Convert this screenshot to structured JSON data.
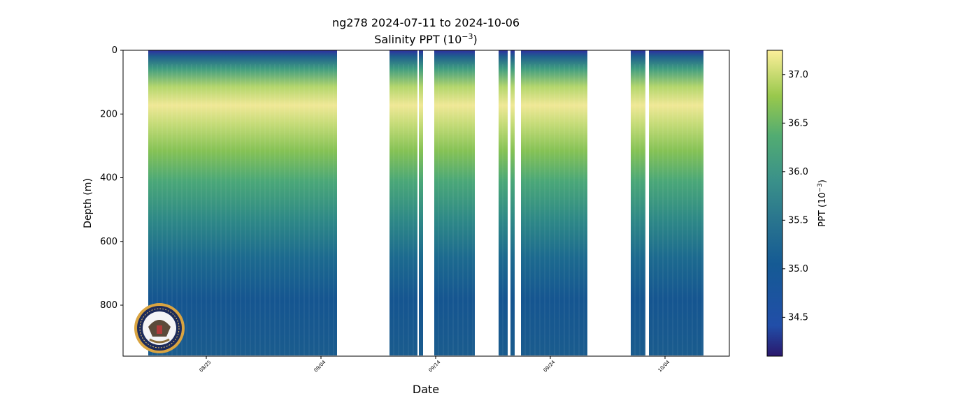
{
  "chart_data": {
    "type": "heatmap",
    "title": "ng278 2024-07-11 to 2024-10-06",
    "subtitle_prefix": "Salinity PPT (10",
    "subtitle_exp": "−3",
    "subtitle_suffix": ")",
    "xlabel": "Date",
    "ylabel": "Depth (m)",
    "x_ticks": [
      "08/25",
      "09/04",
      "09/14",
      "09/24",
      "10/04"
    ],
    "y_ticks": [
      "0",
      "200",
      "400",
      "600",
      "800"
    ],
    "y_tick_values": [
      0,
      200,
      400,
      600,
      800
    ],
    "ylim": [
      0,
      960
    ],
    "y_inverted": true,
    "colorbar": {
      "label_prefix": "PPT (10",
      "label_exp": "−3",
      "label_suffix": ")",
      "ticks": [
        "34.5",
        "35.0",
        "35.5",
        "36.0",
        "36.5",
        "37.0"
      ],
      "tick_values": [
        34.5,
        35.0,
        35.5,
        36.0,
        36.5,
        37.0
      ],
      "range": [
        34.1,
        37.25
      ],
      "colormap": "haline"
    },
    "segments": [
      {
        "start": "08/18",
        "end": "09/04"
      },
      {
        "start": "09/09",
        "end": "09/11"
      },
      {
        "start": "09/11",
        "end": "09/11"
      },
      {
        "start": "09/13",
        "end": "09/19"
      },
      {
        "start": "09/19",
        "end": "09/20"
      },
      {
        "start": "09/21",
        "end": "09/21"
      },
      {
        "start": "09/22",
        "end": "09/25"
      },
      {
        "start": "10/01",
        "end": "10/02"
      },
      {
        "start": "10/02",
        "end": "10/05"
      }
    ],
    "profile_depths_m": [
      0,
      10,
      30,
      60,
      90,
      120,
      150,
      170,
      200,
      250,
      300,
      350,
      400,
      450,
      500,
      550,
      600,
      650,
      700,
      800,
      960
    ],
    "profile_salinity_ppt": [
      34.5,
      34.8,
      35.4,
      36.2,
      36.7,
      37.0,
      37.15,
      37.1,
      36.9,
      36.6,
      36.3,
      36.05,
      35.85,
      35.7,
      35.55,
      35.4,
      35.25,
      35.15,
      35.05,
      35.0,
      35.05
    ],
    "grid": false,
    "logo": "us-navy-seal"
  }
}
